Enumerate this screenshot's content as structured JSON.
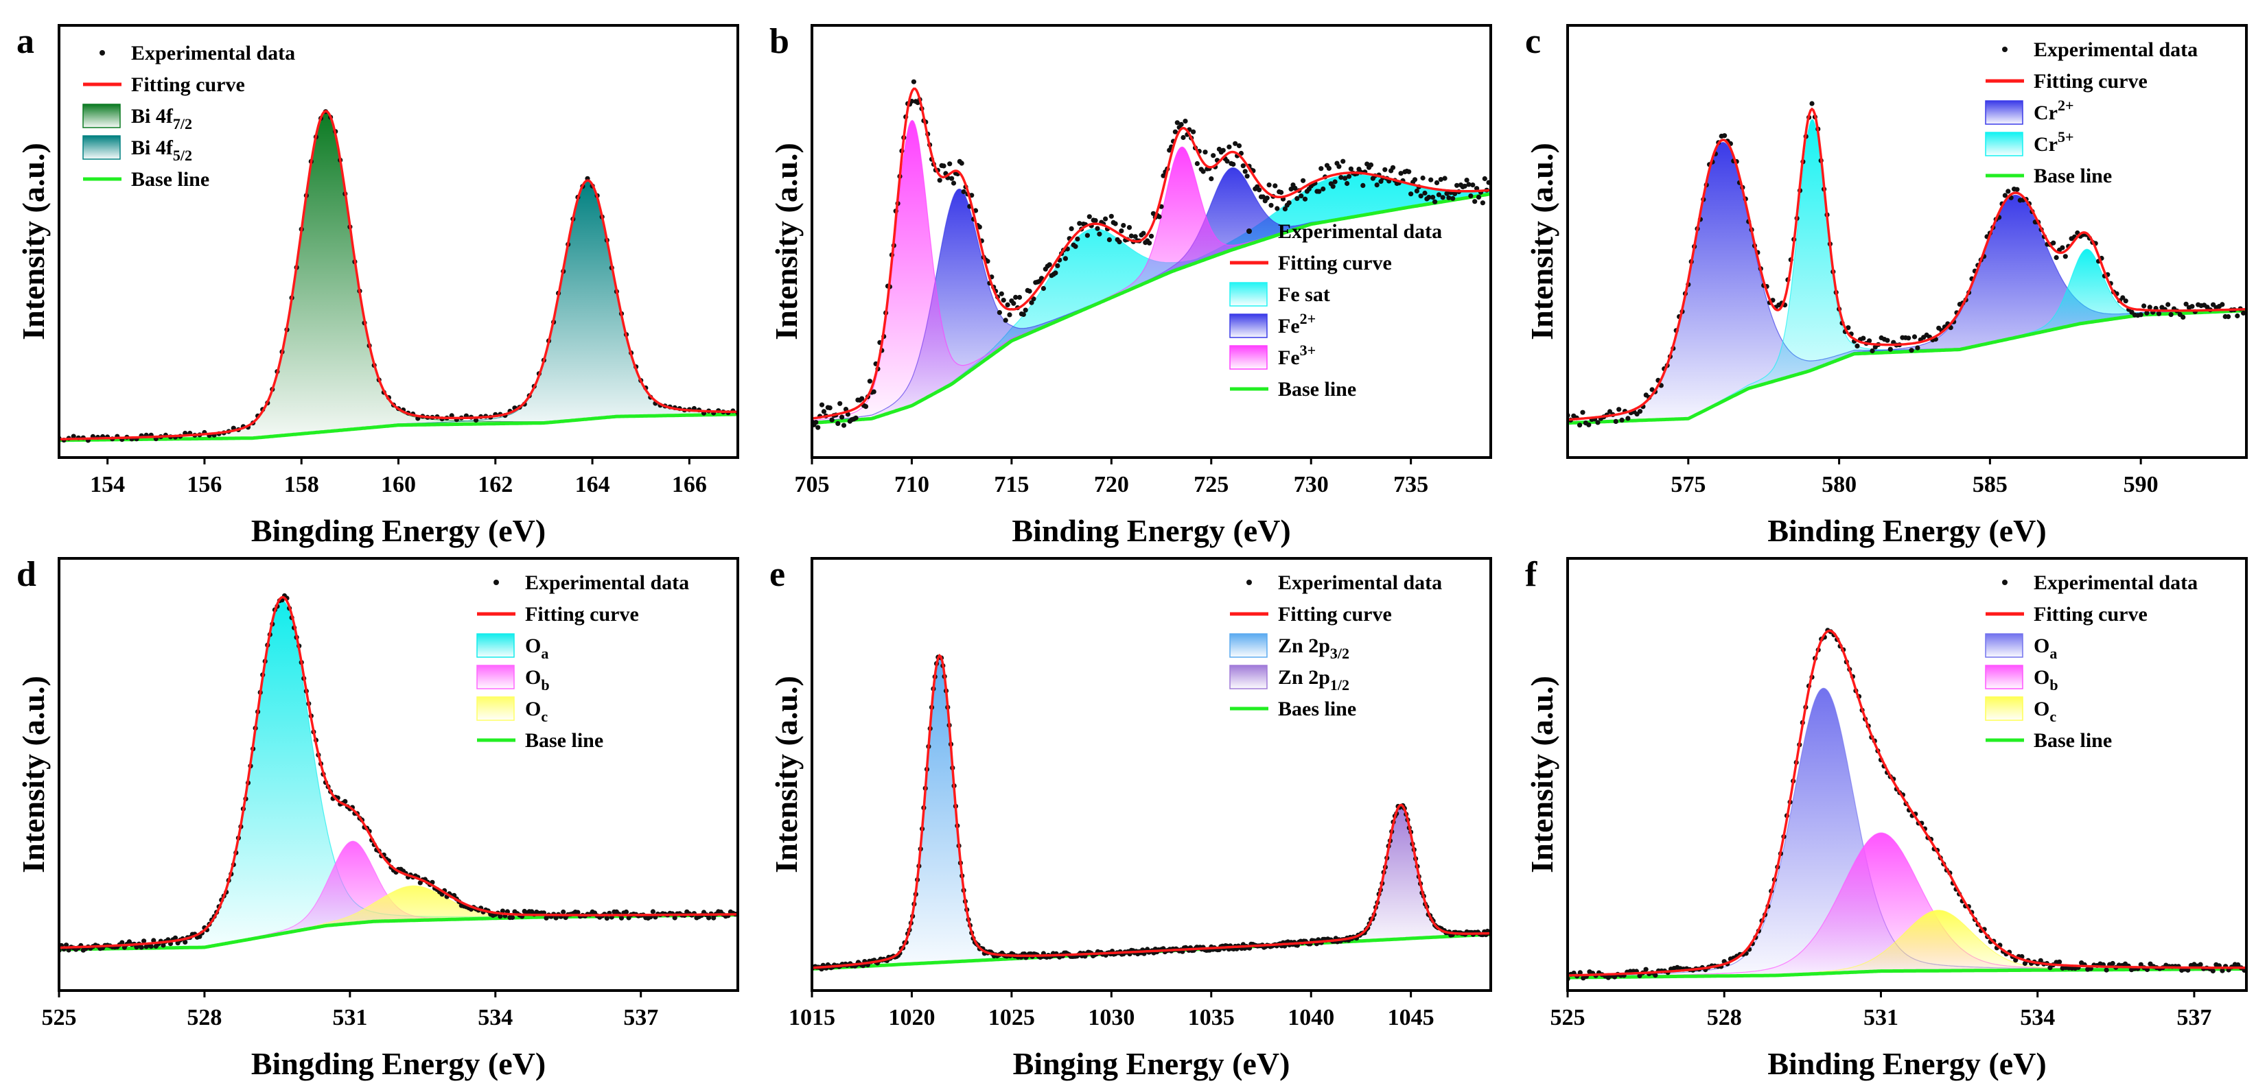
{
  "chart_data": [
    {
      "type": "line",
      "panel": "a",
      "xlabel": "Bingding Energy (eV)",
      "ylabel": "Intensity (a.u.)",
      "xlim": [
        153,
        167
      ],
      "ylim": [
        0,
        100
      ],
      "xticks": [
        154,
        156,
        158,
        160,
        162,
        164,
        166
      ],
      "legend_position": "top-left",
      "baseline": [
        [
          153,
          4
        ],
        [
          157,
          4.5
        ],
        [
          158.5,
          6
        ],
        [
          160,
          7.5
        ],
        [
          163,
          8
        ],
        [
          164.5,
          9.5
        ],
        [
          167,
          10
        ]
      ],
      "components": [
        {
          "label": "Bi 4f",
          "sub": "7/2",
          "color": "#0b7a22",
          "center": 158.5,
          "height": 74,
          "fwhm": 1.25
        },
        {
          "label": "Bi 4f",
          "sub": "5/2",
          "color": "#008080",
          "center": 163.9,
          "height": 55,
          "fwhm": 1.25
        }
      ],
      "noise": 0.6,
      "dot_step": 0.1,
      "legend": [
        {
          "kind": "dot",
          "label": "Experimental data"
        },
        {
          "kind": "line",
          "color": "#ff1a1a",
          "label": "Fitting curve"
        },
        {
          "kind": "box",
          "comp": 0
        },
        {
          "kind": "box",
          "comp": 1
        },
        {
          "kind": "line",
          "color": "#22ee22",
          "label": "Base line"
        }
      ]
    },
    {
      "type": "line",
      "panel": "b",
      "xlabel": "Binding Energy (eV)",
      "ylabel": "Intensity (a.u.)",
      "xlim": [
        705,
        739
      ],
      "ylim": [
        0,
        100
      ],
      "xticks": [
        705,
        710,
        715,
        720,
        725,
        730,
        735
      ],
      "legend_position": "middle-right",
      "baseline": [
        [
          705,
          8
        ],
        [
          708,
          9
        ],
        [
          710,
          12
        ],
        [
          712,
          17
        ],
        [
          715,
          27
        ],
        [
          718,
          33
        ],
        [
          720,
          37
        ],
        [
          723,
          43
        ],
        [
          726,
          48
        ],
        [
          730,
          54
        ],
        [
          735,
          58
        ],
        [
          739,
          61
        ]
      ],
      "components": [
        {
          "label": "Fe sat",
          "color": "#22f4f4",
          "center": 718.8,
          "height": 18,
          "fwhm": 4.5
        },
        {
          "label": "Fe",
          "sup": "2+",
          "color": "#3a3ae8",
          "center": 712.3,
          "height": 44,
          "fwhm": 2.6
        },
        {
          "label": "Fe",
          "sup": "3+",
          "color": "#ff40ff",
          "center": 710.0,
          "height": 66,
          "fwhm": 2.0
        },
        {
          "label": "Fe sat",
          "color": "#22f4f4",
          "center": 731.5,
          "height": 10,
          "fwhm": 7.0,
          "hide_legend": true
        },
        {
          "label": "Fe",
          "sup": "2+",
          "color": "#3a3ae8",
          "center": 726.0,
          "height": 19,
          "fwhm": 2.6,
          "hide_legend": true
        },
        {
          "label": "Fe",
          "sup": "3+",
          "color": "#ff40ff",
          "center": 723.5,
          "height": 28,
          "fwhm": 2.0,
          "hide_legend": true
        }
      ],
      "noise": 3.0,
      "dot_step": 0.1,
      "legend": [
        {
          "kind": "dot",
          "label": "Experimental data"
        },
        {
          "kind": "line",
          "color": "#ff1a1a",
          "label": "Fitting curve"
        },
        {
          "kind": "box",
          "comp": 0
        },
        {
          "kind": "box",
          "comp": 1
        },
        {
          "kind": "box",
          "comp": 2
        },
        {
          "kind": "line",
          "color": "#22ee22",
          "label": "Base line"
        }
      ]
    },
    {
      "type": "line",
      "panel": "c",
      "xlabel": "Binding Energy (eV)",
      "ylabel": "Intensity (a.u.)",
      "xlim": [
        571,
        593.5
      ],
      "ylim": [
        0,
        100
      ],
      "xticks": [
        575,
        580,
        585,
        590
      ],
      "legend_position": "top-right",
      "baseline": [
        [
          571,
          8
        ],
        [
          575,
          9
        ],
        [
          577,
          16
        ],
        [
          579,
          20
        ],
        [
          580.5,
          24
        ],
        [
          584,
          25
        ],
        [
          586,
          28
        ],
        [
          588,
          31
        ],
        [
          590,
          33
        ],
        [
          593.5,
          34
        ]
      ],
      "components": [
        {
          "label": "Cr",
          "sup": "2+",
          "color": "#3a3ae8",
          "center": 576.1,
          "height": 60,
          "fwhm": 2.3
        },
        {
          "label": "Cr",
          "sup": "5+",
          "color": "#12f2f2",
          "center": 579.1,
          "height": 58,
          "fwhm": 1.1
        },
        {
          "label": "Cr",
          "sup": "2+",
          "color": "#3a3ae8",
          "center": 585.8,
          "height": 33,
          "fwhm": 2.5,
          "hide_legend": true
        },
        {
          "label": "Cr",
          "sup": "5+",
          "color": "#12f2f2",
          "center": 588.2,
          "height": 17,
          "fwhm": 1.3,
          "hide_legend": true
        }
      ],
      "noise": 1.6,
      "dot_step": 0.1,
      "legend": [
        {
          "kind": "dot",
          "label": "Experimental data"
        },
        {
          "kind": "line",
          "color": "#ff1a1a",
          "label": "Fitting curve"
        },
        {
          "kind": "box",
          "comp": 0
        },
        {
          "kind": "box",
          "comp": 1
        },
        {
          "kind": "line",
          "color": "#22ee22",
          "label": "Base line"
        }
      ]
    },
    {
      "type": "line",
      "panel": "d",
      "xlabel": "Bingding Energy (eV)",
      "ylabel": "Intensity (a.u.)",
      "xlim": [
        525,
        539
      ],
      "ylim": [
        0,
        100
      ],
      "xticks": [
        525,
        528,
        531,
        534,
        537
      ],
      "legend_position": "top-right",
      "baseline": [
        [
          525,
          9.5
        ],
        [
          528,
          10
        ],
        [
          529,
          12
        ],
        [
          530.5,
          15
        ],
        [
          531.5,
          16
        ],
        [
          535,
          17
        ],
        [
          539,
          17.5
        ]
      ],
      "components": [
        {
          "label": "O",
          "sub": "a",
          "color": "#12ecec",
          "center": 529.6,
          "height": 77,
          "fwhm": 1.35
        },
        {
          "label": "O",
          "sub": "b",
          "color": "#ff66ff",
          "center": 531.05,
          "height": 19,
          "fwhm": 1.1
        },
        {
          "label": "O",
          "sub": "c",
          "color": "#ffff66",
          "center": 532.3,
          "height": 8,
          "fwhm": 1.7
        }
      ],
      "noise": 0.8,
      "dot_step": 0.05,
      "legend": [
        {
          "kind": "dot",
          "label": "Experimental data"
        },
        {
          "kind": "line",
          "color": "#ff1a1a",
          "label": "Fitting curve"
        },
        {
          "kind": "box",
          "comp": 0
        },
        {
          "kind": "box",
          "comp": 1
        },
        {
          "kind": "box",
          "comp": 2
        },
        {
          "kind": "line",
          "color": "#22ee22",
          "label": "Base line"
        }
      ]
    },
    {
      "type": "line",
      "panel": "e",
      "xlabel": "Binging Energy (eV)",
      "ylabel": "Intensity (a.u.)",
      "xlim": [
        1015,
        1049
      ],
      "ylim": [
        0,
        100
      ],
      "xticks": [
        1015,
        1020,
        1025,
        1030,
        1035,
        1040,
        1045
      ],
      "legend_position": "top-right",
      "baseline": [
        [
          1015,
          5
        ],
        [
          1049,
          13
        ]
      ],
      "components": [
        {
          "label": "Zn 2p",
          "sub": "3/2",
          "color": "#5aaaf0",
          "center": 1021.4,
          "height": 71,
          "fwhm": 1.6
        },
        {
          "label": "Zn 2p",
          "sub": "1/2",
          "color": "#a07ad8",
          "center": 1044.5,
          "height": 31,
          "fwhm": 1.7
        }
      ],
      "noise": 0.5,
      "dot_step": 0.08,
      "legend": [
        {
          "kind": "dot",
          "label": "Experimental data"
        },
        {
          "kind": "line",
          "color": "#ff1a1a",
          "label": "Fitting curve"
        },
        {
          "kind": "box",
          "comp": 0
        },
        {
          "kind": "box",
          "comp": 1
        },
        {
          "kind": "line",
          "color": "#22ee22",
          "label": "Baes line"
        }
      ]
    },
    {
      "type": "line",
      "panel": "f",
      "xlabel": "Binding Energy (eV)",
      "ylabel": "Intensity (a.u.)",
      "xlim": [
        525,
        538
      ],
      "ylim": [
        0,
        100
      ],
      "xticks": [
        525,
        528,
        531,
        534,
        537
      ],
      "legend_position": "top-right",
      "baseline": [
        [
          525,
          3
        ],
        [
          529,
          3.5
        ],
        [
          531,
          4.5
        ],
        [
          538,
          5
        ]
      ],
      "components": [
        {
          "label": "O",
          "sub": "a",
          "color": "#7272ee",
          "center": 529.9,
          "height": 66,
          "fwhm": 1.4
        },
        {
          "label": "O",
          "sub": "b",
          "color": "#ff55ff",
          "center": 531.0,
          "height": 32,
          "fwhm": 1.8
        },
        {
          "label": "O",
          "sub": "c",
          "color": "#ffff55",
          "center": 532.1,
          "height": 14,
          "fwhm": 1.6
        }
      ],
      "noise": 0.8,
      "dot_step": 0.06,
      "legend": [
        {
          "kind": "dot",
          "label": "Experimental data"
        },
        {
          "kind": "line",
          "color": "#ff1a1a",
          "label": "Fitting curve"
        },
        {
          "kind": "box",
          "comp": 0
        },
        {
          "kind": "box",
          "comp": 1
        },
        {
          "kind": "box",
          "comp": 2
        },
        {
          "kind": "line",
          "color": "#22ee22",
          "label": "Base line"
        }
      ]
    }
  ]
}
